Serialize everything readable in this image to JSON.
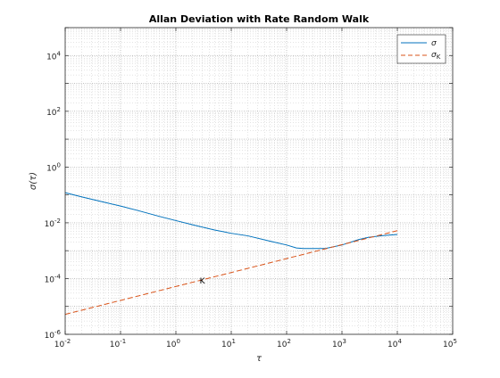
{
  "chart_data": {
    "type": "line",
    "title": "Allan Deviation with Rate Random Walk",
    "xlabel": "τ",
    "ylabel": "σ(τ)",
    "xscale": "log",
    "yscale": "log",
    "xlim": [
      0.01,
      100000
    ],
    "ylim": [
      1e-06,
      100000
    ],
    "x_ticks": [
      {
        "base": "10",
        "exp": "-2",
        "value": 0.01
      },
      {
        "base": "10",
        "exp": "-1",
        "value": 0.1
      },
      {
        "base": "10",
        "exp": "0",
        "value": 1
      },
      {
        "base": "10",
        "exp": "1",
        "value": 10
      },
      {
        "base": "10",
        "exp": "2",
        "value": 100
      },
      {
        "base": "10",
        "exp": "3",
        "value": 1000
      },
      {
        "base": "10",
        "exp": "4",
        "value": 10000
      },
      {
        "base": "10",
        "exp": "5",
        "value": 100000
      }
    ],
    "y_ticks": [
      {
        "base": "10",
        "exp": "-6",
        "value": 1e-06
      },
      {
        "base": "10",
        "exp": "-4",
        "value": 0.0001
      },
      {
        "base": "10",
        "exp": "-2",
        "value": 0.01
      },
      {
        "base": "10",
        "exp": "0",
        "value": 1
      },
      {
        "base": "10",
        "exp": "2",
        "value": 100
      },
      {
        "base": "10",
        "exp": "4",
        "value": 10000
      }
    ],
    "grid": true,
    "minor_grid": true,
    "legend_position": "top-right",
    "series": [
      {
        "name": "σ",
        "style": "solid",
        "color": "#0072BD",
        "points": [
          [
            0.01,
            0.12
          ],
          [
            0.02,
            0.085
          ],
          [
            0.05,
            0.055
          ],
          [
            0.1,
            0.04
          ],
          [
            0.2,
            0.028
          ],
          [
            0.5,
            0.017
          ],
          [
            1,
            0.012
          ],
          [
            2,
            0.0085
          ],
          [
            5,
            0.0055
          ],
          [
            10,
            0.0042
          ],
          [
            20,
            0.0034
          ],
          [
            50,
            0.0022
          ],
          [
            100,
            0.0016
          ],
          [
            150,
            0.00125
          ],
          [
            200,
            0.0012
          ],
          [
            500,
            0.0012
          ],
          [
            1000,
            0.0016
          ],
          [
            2000,
            0.0025
          ],
          [
            3000,
            0.003
          ],
          [
            5000,
            0.0034
          ],
          [
            10000,
            0.0038
          ]
        ]
      },
      {
        "name": "σ",
        "subscript": "K",
        "style": "dashed",
        "color": "#D95319",
        "points": [
          [
            0.01,
            5.2e-06
          ],
          [
            10000,
            0.0052
          ]
        ]
      }
    ],
    "annotations": [
      {
        "text": "K",
        "x": 3,
        "y": 9e-05
      }
    ]
  }
}
